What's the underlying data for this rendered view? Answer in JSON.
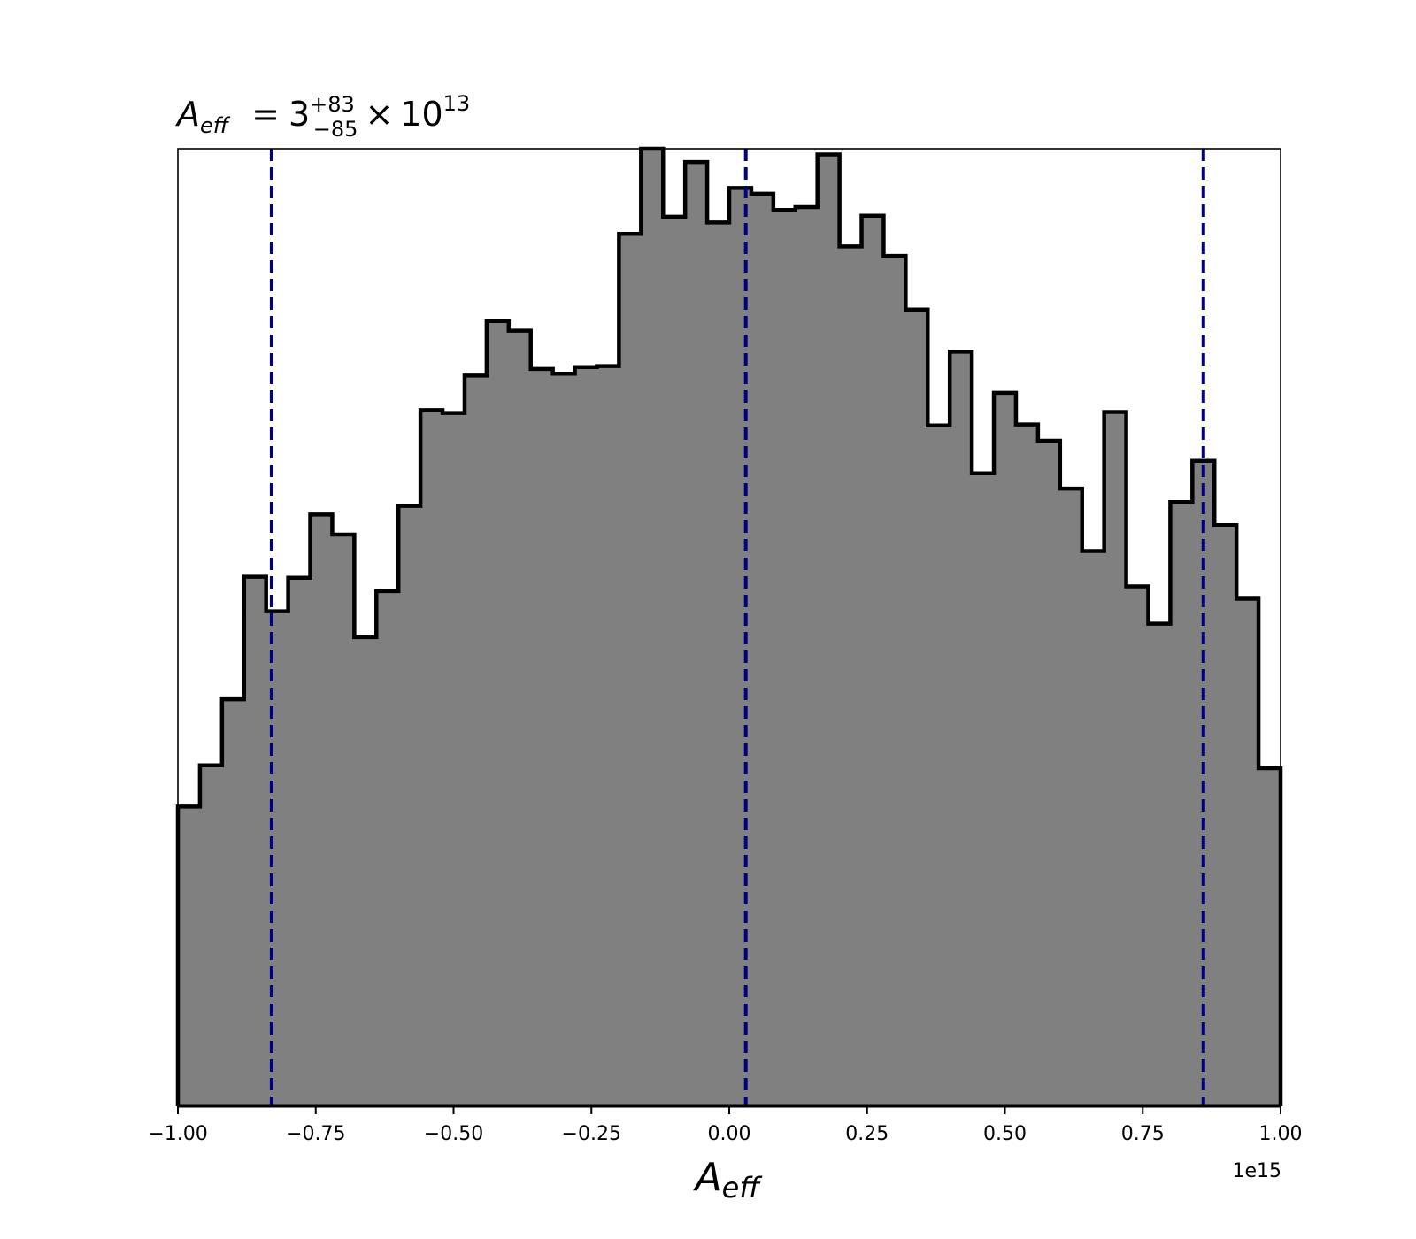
{
  "chart_data": {
    "type": "histogram",
    "title": {
      "symbol": "A",
      "symbol_sub": "eff",
      "equals": "=",
      "base": "3",
      "sup": "+83",
      "sub": "−85",
      "times": "×",
      "power_base": "10",
      "power_exp": "13"
    },
    "xlabel": {
      "symbol": "A",
      "symbol_sub": "eff"
    },
    "ylabel": "",
    "x_offset_label": "1e15",
    "xlim": [
      -1.0,
      1.0
    ],
    "ylim": [
      0,
      1.0
    ],
    "x_ticks": [
      -1.0,
      -0.75,
      -0.5,
      -0.25,
      0.0,
      0.25,
      0.5,
      0.75,
      1.0
    ],
    "x_tick_labels": [
      "−1.00",
      "−0.75",
      "−0.50",
      "−0.25",
      "0.00",
      "0.25",
      "0.50",
      "0.75",
      "1.00"
    ],
    "show_y_ticks": false,
    "grid": false,
    "fill_color": "#808080",
    "edge_color": "#000000",
    "quantile_color": "#000080",
    "quantile_lines": [
      -0.83,
      0.03,
      0.86
    ],
    "bin_edges": [
      -1.0,
      -0.96,
      -0.92,
      -0.88,
      -0.84,
      -0.8,
      -0.76,
      -0.72,
      -0.68,
      -0.64,
      -0.6,
      -0.56,
      -0.52,
      -0.48,
      -0.44,
      -0.4,
      -0.36,
      -0.32,
      -0.28,
      -0.24,
      -0.2,
      -0.16,
      -0.12,
      -0.08,
      -0.04,
      0.0,
      0.04,
      0.08,
      0.12,
      0.16,
      0.2,
      0.24,
      0.28,
      0.32,
      0.36,
      0.4,
      0.44,
      0.48,
      0.52,
      0.56,
      0.6,
      0.64,
      0.68,
      0.72,
      0.76,
      0.8,
      0.84,
      0.88,
      0.92,
      0.96,
      1.0
    ],
    "values": [
      0.313,
      0.356,
      0.425,
      0.553,
      0.517,
      0.552,
      0.618,
      0.597,
      0.49,
      0.538,
      0.627,
      0.727,
      0.724,
      0.763,
      0.82,
      0.81,
      0.77,
      0.765,
      0.772,
      0.773,
      0.911,
      1.0,
      0.929,
      0.986,
      0.923,
      0.959,
      0.953,
      0.936,
      0.939,
      0.994,
      0.898,
      0.93,
      0.888,
      0.832,
      0.711,
      0.788,
      0.661,
      0.745,
      0.712,
      0.695,
      0.645,
      0.58,
      0.725,
      0.543,
      0.504,
      0.631,
      0.674,
      0.607,
      0.53,
      0.353
    ]
  }
}
